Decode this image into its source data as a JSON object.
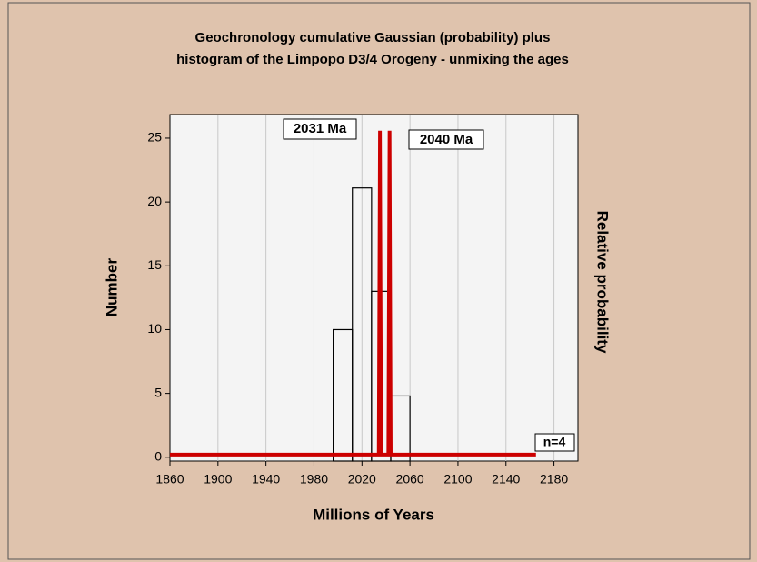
{
  "chart_data": {
    "type": "histogram",
    "title": "Geochronology cumulative Gaussian (probability) plus",
    "subtitle": "histogram of the Limpopo D3/4 Orogeny - unmixing the ages",
    "x_label": "Millions of Years",
    "y_label": "Number",
    "y2_label": "Relative probability",
    "annotations": [
      "2031 Ma",
      "2040 Ma",
      "n=4"
    ],
    "bins": [
      1996,
      2012,
      2028,
      2044,
      2060
    ],
    "counts": [
      10,
      21.1,
      13,
      4.8
    ],
    "color": "#000000",
    "series": [
      {
        "name": "Relative probability",
        "color": "#cc0000",
        "axis": "y2",
        "x": [
          1860,
          2034,
          2035,
          2036,
          2042,
          2043,
          2044,
          2165
        ],
        "values": [
          0,
          0,
          1,
          0,
          0,
          1,
          0,
          0
        ]
      }
    ],
    "xlim": [
      1860,
      2200
    ],
    "xticks": [
      1860,
      1900,
      1940,
      1980,
      2020,
      2060,
      2100,
      2140,
      2180
    ],
    "ylim": [
      -0.3,
      26.85
    ],
    "yticks": [
      0,
      5,
      10,
      15,
      20,
      25
    ],
    "y2lim": [
      -0.02,
      1.05
    ],
    "grid": true
  }
}
